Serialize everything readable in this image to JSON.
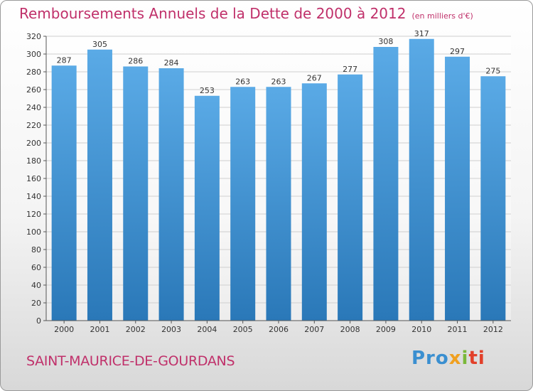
{
  "header": {
    "title": "Remboursements Annuels de la Dette de 2000 à 2012",
    "unit": "(en milliers d'€)"
  },
  "footer": {
    "place": "SAINT-MAURICE-DE-GOURDANS",
    "logo_parts": [
      "Pro",
      "x",
      "i",
      "ti"
    ]
  },
  "colors": {
    "title": "#c0306a",
    "bar_top": "#5aaae6",
    "bar_bottom": "#2a78b8"
  },
  "chart_data": {
    "type": "bar",
    "title": "Remboursements Annuels de la Dette de 2000 à 2012",
    "categories": [
      "2000",
      "2001",
      "2002",
      "2003",
      "2004",
      "2005",
      "2006",
      "2007",
      "2008",
      "2009",
      "2010",
      "2011",
      "2012"
    ],
    "values": [
      287,
      305,
      286,
      284,
      253,
      263,
      263,
      267,
      277,
      308,
      317,
      297,
      275
    ],
    "ylim": [
      0,
      320
    ],
    "yticks": [
      0,
      20,
      40,
      60,
      80,
      100,
      120,
      140,
      160,
      180,
      200,
      220,
      240,
      260,
      280,
      300,
      320
    ],
    "grid": true,
    "legend": "none"
  }
}
